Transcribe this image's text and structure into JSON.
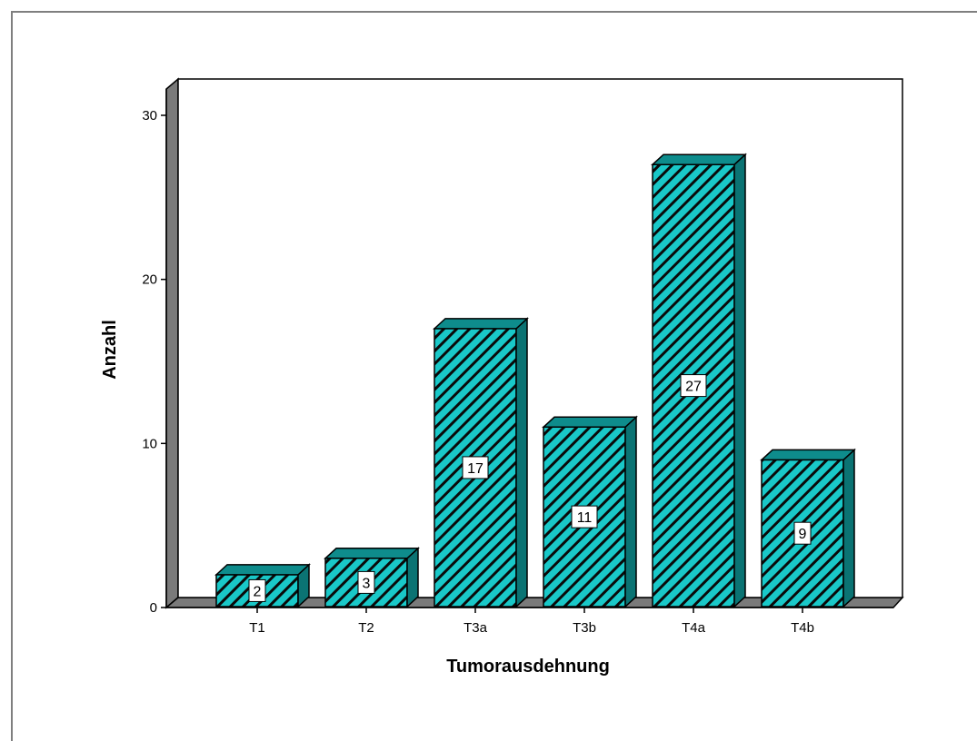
{
  "chart_data": {
    "type": "bar",
    "title": "",
    "xlabel": "Tumorausdehnung",
    "ylabel": "Anzahl",
    "categories": [
      "T1",
      "T2",
      "T3a",
      "T3b",
      "T4a",
      "T4b"
    ],
    "values": [
      2,
      3,
      17,
      11,
      27,
      9
    ],
    "data_labels": [
      "2",
      "3",
      "17",
      "11",
      "27",
      "9"
    ],
    "ylim": [
      0,
      30
    ],
    "yticks": [
      0,
      10,
      20,
      30
    ],
    "ytick_labels": [
      "0",
      "10",
      "20",
      "30"
    ],
    "grid": false,
    "legend": "none",
    "style": "3d",
    "bar_fill_pattern": "diagonal-hatch",
    "colors": {
      "bar_fill": "#19c8c8",
      "bar_hatch": "#0a0a0a",
      "bar_side": "#0b7373",
      "bar_top": "#0e8c8c",
      "floor": "#7a7a7a",
      "wall_side": "#7a7a7a",
      "plot_background": "#ffffff",
      "frame": "#7f7f7f"
    }
  }
}
